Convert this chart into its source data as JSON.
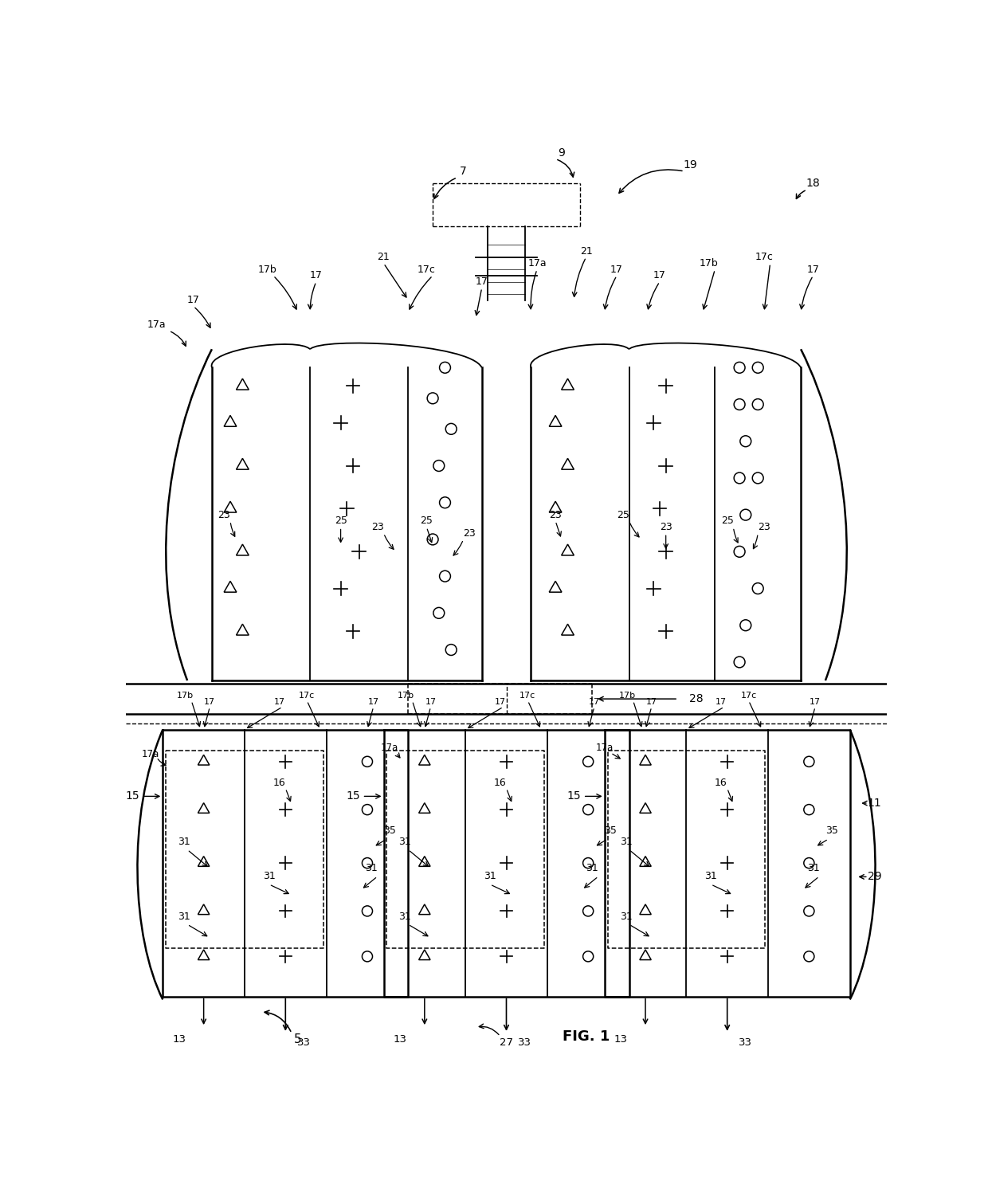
{
  "fig_label": "FIG. 1",
  "bg_color": "#ffffff",
  "line_color": "#000000",
  "labels": {
    "5": "5",
    "7": "7",
    "9": "9",
    "11": "11",
    "13": "13",
    "15": "15",
    "16": "16",
    "17": "17",
    "17a": "17a",
    "17b": "17b",
    "17c": "17c",
    "18": "18",
    "19": "19",
    "21": "21",
    "23": "23",
    "25": "25",
    "27": "27",
    "28": "28",
    "29": "29",
    "31": "31",
    "33": "33",
    "35": "35"
  }
}
